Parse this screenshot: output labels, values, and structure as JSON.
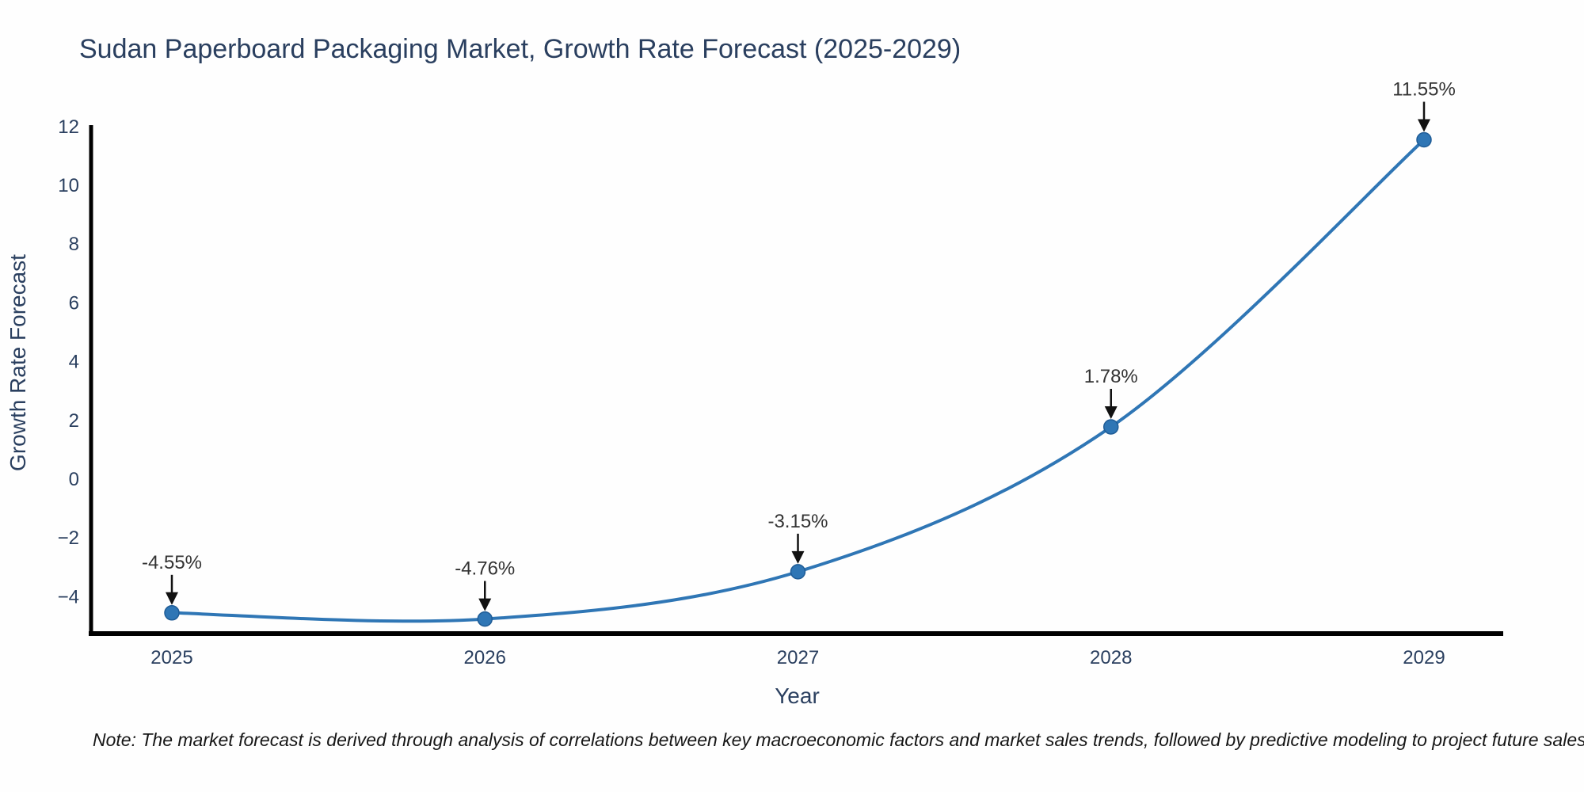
{
  "note": "Note: The market forecast is derived through analysis of correlations between key macroeconomic factors and market sales trends, followed by predictive modeling to project future sales",
  "chart_data": {
    "type": "line",
    "title": "Sudan Paperboard Packaging Market, Growth Rate Forecast (2025-2029)",
    "xlabel": "Year",
    "ylabel": "Growth Rate Forecast",
    "categories": [
      "2025",
      "2026",
      "2027",
      "2028",
      "2029"
    ],
    "values": [
      -4.55,
      -4.76,
      -3.15,
      1.78,
      11.55
    ],
    "point_labels": [
      "-4.55%",
      "-4.76%",
      "-3.15%",
      "1.78%",
      "11.55%"
    ],
    "series_name": "Growth Rate Forecast",
    "y_ticks": [
      12,
      10,
      8,
      6,
      4,
      2,
      0,
      -2,
      -4
    ],
    "y_tick_labels": [
      "12",
      "10",
      "8",
      "6",
      "4",
      "2",
      "0",
      "−2",
      "−4"
    ],
    "ylim": [
      -5.3,
      12.1
    ],
    "grid": false,
    "legend_position": "none",
    "line_shape": "spline",
    "line_color": "#2f76b5",
    "marker_color": "#2f76b5",
    "marker_edge_color": "#1f5c96",
    "axis_line_color": "#000000",
    "title_color": "#2a3f5f",
    "tick_color": "#2a3f5f",
    "annotation_color": "#333333",
    "arrow_color": "#111111"
  }
}
